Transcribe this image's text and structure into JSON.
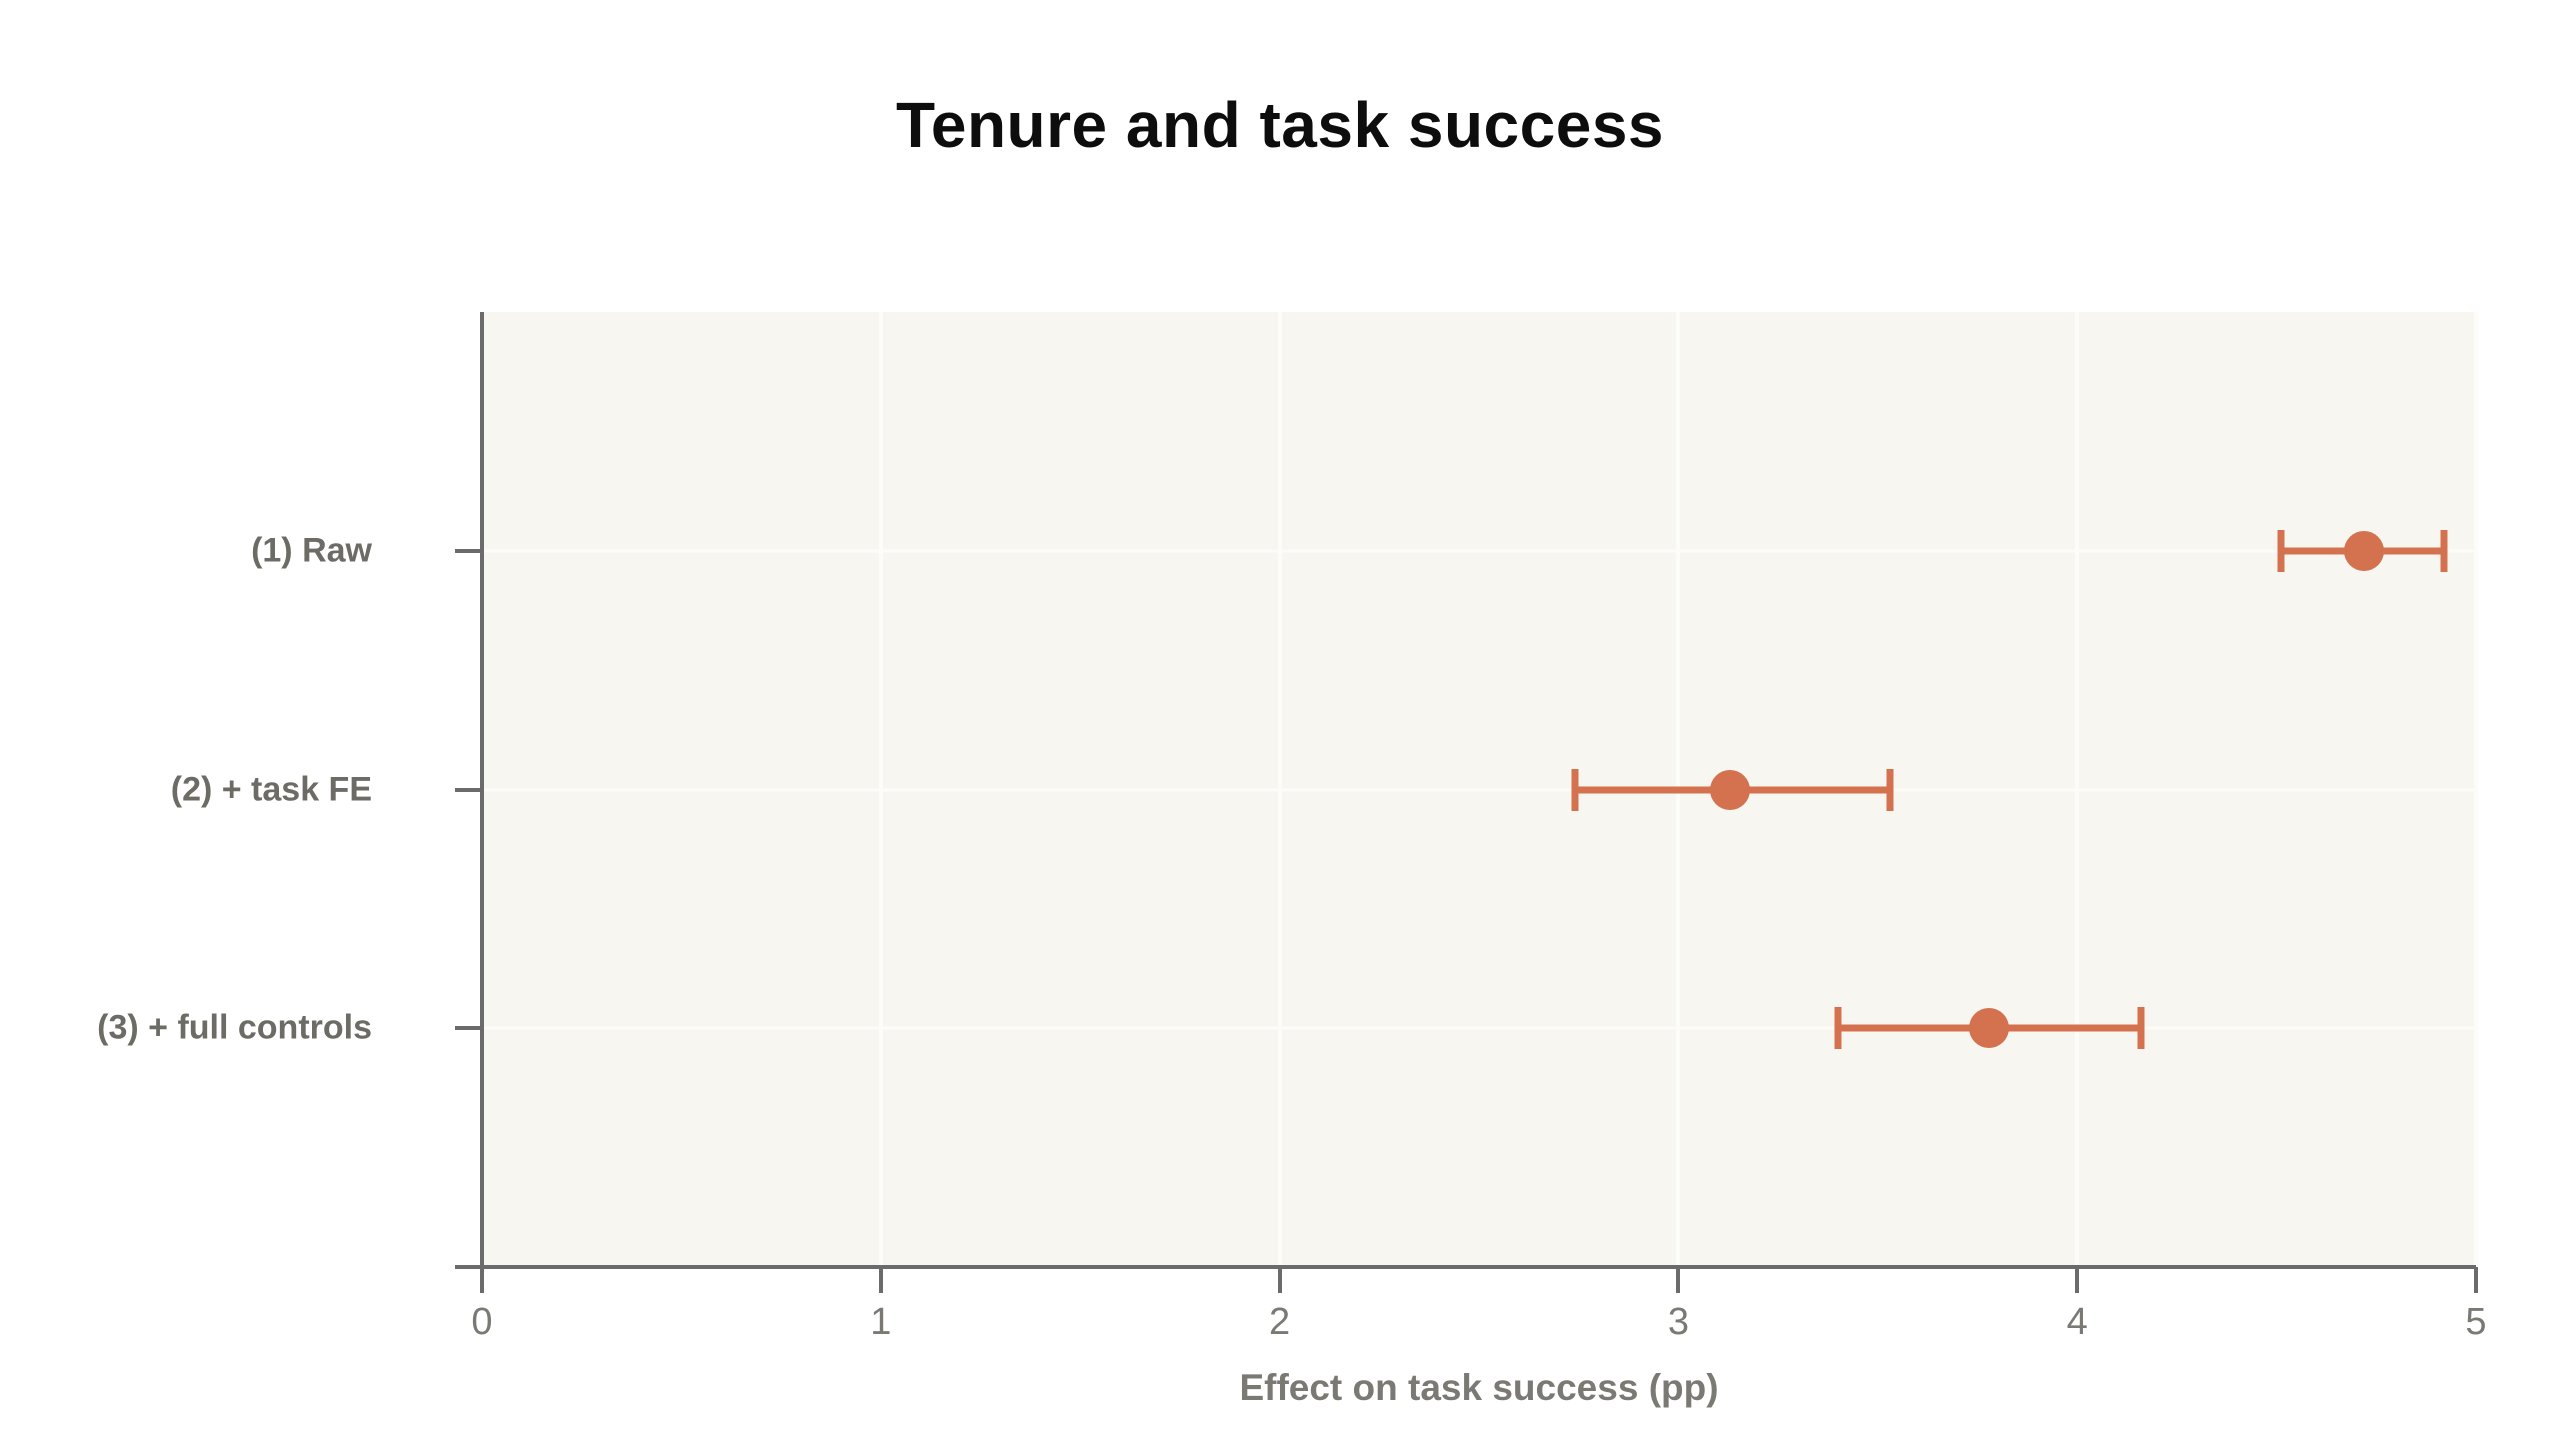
{
  "page": {
    "title": "Tenure and task success"
  },
  "chart_data": {
    "type": "scatter",
    "subtype": "coefficient-dot-whisker",
    "title": "Tenure and task success",
    "xlabel": "Effect on task success (pp)",
    "ylabel": "",
    "xlim": [
      0,
      5
    ],
    "x_ticks": [
      0,
      1,
      2,
      3,
      4,
      5
    ],
    "x_tick_labels": [
      "0",
      "1",
      "2",
      "3",
      "4",
      "5"
    ],
    "grid": true,
    "legend": false,
    "categories": [
      "(1) Raw",
      "(2) + task FE",
      "(3) + full controls"
    ],
    "points": [
      {
        "label": "(1) Raw",
        "estimate": 4.72,
        "ci_low": 4.51,
        "ci_high": 4.92
      },
      {
        "label": "(2) + task FE",
        "estimate": 3.13,
        "ci_low": 2.74,
        "ci_high": 3.53
      },
      {
        "label": "(3) + full controls",
        "estimate": 3.78,
        "ci_low": 3.4,
        "ci_high": 4.16
      }
    ]
  },
  "colors": {
    "accent": "#d4714e",
    "plot_bg": "#f7f6f0",
    "page_bg": "#ffffff",
    "axis": "#6b6b6b",
    "grid": "#fcfcf8",
    "category_label": "#6c6b65",
    "tick_label": "#7a7973",
    "title": "#0d0d0d"
  }
}
